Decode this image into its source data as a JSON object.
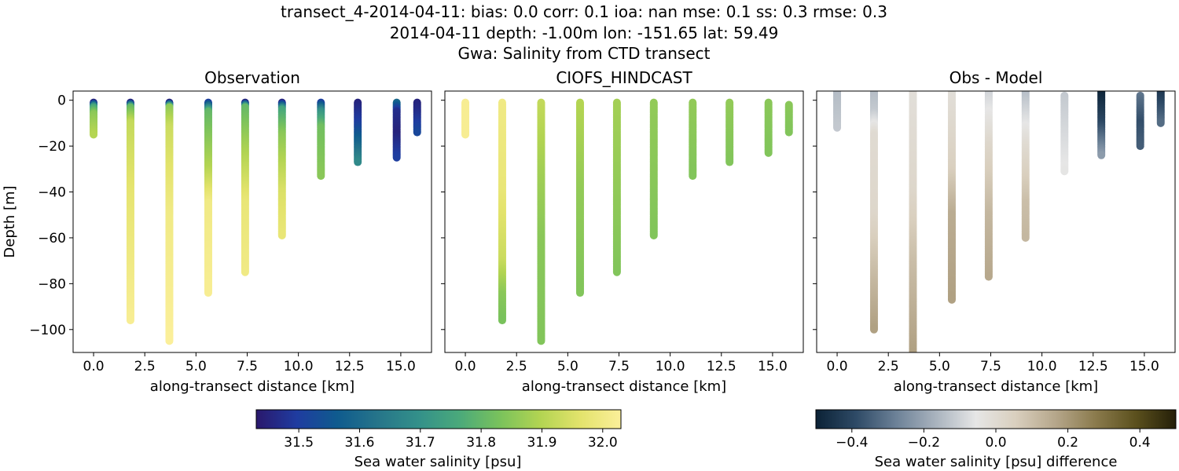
{
  "title_lines": [
    "transect_4-2014-04-11: bias: 0.0  corr: 0.1  ioa: nan  mse: 0.1  ss: 0.3  rmse: 0.3",
    "2014-04-11 depth: -1.00m lon: -151.65 lat: 59.49",
    "Gwa: Salinity from CTD transect"
  ],
  "colorbars": [
    {
      "id": "salinity",
      "label": "Sea water salinity [psu]",
      "range": [
        31.43,
        32.03
      ],
      "ticks": [
        "31.5",
        "31.6",
        "31.7",
        "31.8",
        "31.9",
        "32.0"
      ],
      "tick_values": [
        31.5,
        31.6,
        31.7,
        31.8,
        31.9,
        32.0
      ],
      "colormap": "haline",
      "stops": [
        "#2a186c",
        "#1f3ca0",
        "#0f5b8e",
        "#26758a",
        "#33908a",
        "#4aa97b",
        "#79c25c",
        "#b2d452",
        "#e3e36c",
        "#fbef9a"
      ]
    },
    {
      "id": "difference",
      "label": "Sea water salinity [psu] difference",
      "range": [
        -0.5,
        0.5
      ],
      "ticks": [
        "−0.4",
        "−0.2",
        "0.0",
        "0.2",
        "0.4"
      ],
      "tick_values": [
        -0.4,
        -0.2,
        0.0,
        0.2,
        0.4
      ],
      "colormap": "diff",
      "stops": [
        "#0b2236",
        "#2e4a66",
        "#6c8197",
        "#a9b3be",
        "#e6e6e6",
        "#d9cfbe",
        "#b5a68a",
        "#8a7a4c",
        "#5b501d",
        "#241f08"
      ]
    }
  ],
  "chart_data": [
    {
      "type": "scatter",
      "title": "Observation",
      "xlabel": "along-transect distance [km]",
      "ylabel": "Depth [m]",
      "xlim": [
        -1.0,
        16.5
      ],
      "ylim": [
        -110,
        4
      ],
      "xticks": [
        "0.0",
        "2.5",
        "5.0",
        "7.5",
        "10.0",
        "12.5",
        "15.0"
      ],
      "xtick_values": [
        0,
        2.5,
        5,
        7.5,
        10,
        12.5,
        15
      ],
      "yticks": [
        "0",
        "−20",
        "−40",
        "−60",
        "−80",
        "−100"
      ],
      "ytick_values": [
        0,
        -20,
        -40,
        -60,
        -80,
        -100
      ],
      "colorbar": "salinity",
      "casts": [
        {
          "x": 0.0,
          "top": -1,
          "bottom": -15,
          "profile": [
            [
              -1,
              31.45
            ],
            [
              -3,
              31.75
            ],
            [
              -6,
              31.85
            ],
            [
              -15,
              31.9
            ]
          ]
        },
        {
          "x": 1.8,
          "top": -1,
          "bottom": -96,
          "profile": [
            [
              -1,
              31.45
            ],
            [
              -3,
              31.8
            ],
            [
              -10,
              31.92
            ],
            [
              -40,
              31.97
            ],
            [
              -96,
              32.02
            ]
          ]
        },
        {
          "x": 3.7,
          "top": -1,
          "bottom": -105,
          "profile": [
            [
              -1,
              31.45
            ],
            [
              -3,
              31.85
            ],
            [
              -12,
              31.93
            ],
            [
              -50,
              32.0
            ],
            [
              -105,
              32.03
            ]
          ]
        },
        {
          "x": 5.6,
          "top": -1,
          "bottom": -84,
          "profile": [
            [
              -1,
              31.5
            ],
            [
              -5,
              31.8
            ],
            [
              -30,
              31.9
            ],
            [
              -45,
              32.0
            ],
            [
              -84,
              32.02
            ]
          ]
        },
        {
          "x": 7.4,
          "top": -1,
          "bottom": -75,
          "profile": [
            [
              -1,
              31.45
            ],
            [
              -3,
              31.8
            ],
            [
              -20,
              31.88
            ],
            [
              -45,
              31.98
            ],
            [
              -75,
              32.0
            ]
          ]
        },
        {
          "x": 9.2,
          "top": -1,
          "bottom": -59,
          "profile": [
            [
              -1,
              31.45
            ],
            [
              -4,
              31.75
            ],
            [
              -15,
              31.85
            ],
            [
              -40,
              31.95
            ],
            [
              -59,
              31.98
            ]
          ]
        },
        {
          "x": 11.1,
          "top": -1,
          "bottom": -33,
          "profile": [
            [
              -1,
              31.5
            ],
            [
              -5,
              31.7
            ],
            [
              -12,
              31.82
            ],
            [
              -33,
              31.85
            ]
          ]
        },
        {
          "x": 12.9,
          "top": -1,
          "bottom": -27,
          "profile": [
            [
              -1,
              31.45
            ],
            [
              -10,
              31.5
            ],
            [
              -20,
              31.6
            ],
            [
              -27,
              31.68
            ]
          ]
        },
        {
          "x": 14.8,
          "top": -1,
          "bottom": -25,
          "profile": [
            [
              -1,
              31.6
            ],
            [
              -5,
              31.47
            ],
            [
              -15,
              31.45
            ],
            [
              -25,
              31.5
            ]
          ]
        },
        {
          "x": 15.8,
          "top": -1,
          "bottom": -14,
          "profile": [
            [
              -1,
              31.45
            ],
            [
              -6,
              31.47
            ],
            [
              -14,
              31.52
            ]
          ]
        }
      ]
    },
    {
      "type": "scatter",
      "title": "CIOFS_HINDCAST",
      "xlabel": "along-transect distance [km]",
      "ylabel": "",
      "xlim": [
        -1.0,
        16.5
      ],
      "ylim": [
        -110,
        4
      ],
      "xticks": [
        "0.0",
        "2.5",
        "5.0",
        "7.5",
        "10.0",
        "12.5",
        "15.0"
      ],
      "xtick_values": [
        0,
        2.5,
        5,
        7.5,
        10,
        12.5,
        15
      ],
      "colorbar": "salinity",
      "casts": [
        {
          "x": 0.0,
          "top": -1,
          "bottom": -15,
          "profile": [
            [
              -1,
              32.02
            ],
            [
              -15,
              32.02
            ]
          ]
        },
        {
          "x": 1.8,
          "top": -1,
          "bottom": -96,
          "profile": [
            [
              -1,
              32.0
            ],
            [
              -40,
              31.98
            ],
            [
              -70,
              31.93
            ],
            [
              -85,
              31.85
            ],
            [
              -96,
              31.83
            ]
          ]
        },
        {
          "x": 3.7,
          "top": -1,
          "bottom": -105,
          "profile": [
            [
              -1,
              31.92
            ],
            [
              -30,
              31.88
            ],
            [
              -60,
              31.85
            ],
            [
              -105,
              31.84
            ]
          ]
        },
        {
          "x": 5.6,
          "top": -1,
          "bottom": -84,
          "profile": [
            [
              -1,
              31.9
            ],
            [
              -40,
              31.86
            ],
            [
              -84,
              31.84
            ]
          ]
        },
        {
          "x": 7.4,
          "top": -1,
          "bottom": -75,
          "profile": [
            [
              -1,
              31.88
            ],
            [
              -75,
              31.84
            ]
          ]
        },
        {
          "x": 9.2,
          "top": -1,
          "bottom": -59,
          "profile": [
            [
              -1,
              31.86
            ],
            [
              -59,
              31.84
            ]
          ]
        },
        {
          "x": 11.1,
          "top": -1,
          "bottom": -33,
          "profile": [
            [
              -1,
              31.86
            ],
            [
              -33,
              31.84
            ]
          ]
        },
        {
          "x": 12.9,
          "top": -1,
          "bottom": -27,
          "profile": [
            [
              -1,
              31.86
            ],
            [
              -27,
              31.84
            ]
          ]
        },
        {
          "x": 14.8,
          "top": -1,
          "bottom": -23,
          "profile": [
            [
              -1,
              31.85
            ],
            [
              -23,
              31.84
            ]
          ]
        },
        {
          "x": 15.8,
          "top": -2,
          "bottom": -14,
          "profile": [
            [
              -2,
              31.85
            ],
            [
              -14,
              31.84
            ]
          ]
        }
      ]
    },
    {
      "type": "scatter",
      "title": "Obs - Model",
      "xlabel": "along-transect distance [km]",
      "ylabel": "",
      "xlim": [
        -1.0,
        16.5
      ],
      "ylim": [
        -110,
        4
      ],
      "xticks": [
        "0.0",
        "2.5",
        "5.0",
        "7.5",
        "10.0",
        "12.5",
        "15.0"
      ],
      "xtick_values": [
        0,
        2.5,
        5,
        7.5,
        10,
        12.5,
        15
      ],
      "colorbar": "difference",
      "casts": [
        {
          "x": 0.0,
          "top": 4,
          "bottom": -12,
          "profile": [
            [
              4,
              -0.15
            ],
            [
              -12,
              -0.12
            ]
          ]
        },
        {
          "x": 1.8,
          "top": 4,
          "bottom": -100,
          "profile": [
            [
              4,
              -0.15
            ],
            [
              -5,
              -0.12
            ],
            [
              -15,
              0.0
            ],
            [
              -50,
              0.02
            ],
            [
              -80,
              0.12
            ],
            [
              -100,
              0.18
            ]
          ]
        },
        {
          "x": 3.7,
          "top": 4,
          "bottom": -110,
          "profile": [
            [
              4,
              -0.02
            ],
            [
              -40,
              0.02
            ],
            [
              -70,
              0.1
            ],
            [
              -110,
              0.18
            ]
          ]
        },
        {
          "x": 5.6,
          "top": 4,
          "bottom": -87,
          "profile": [
            [
              4,
              -0.02
            ],
            [
              -30,
              0.05
            ],
            [
              -50,
              0.15
            ],
            [
              -87,
              0.18
            ]
          ]
        },
        {
          "x": 7.4,
          "top": 4,
          "bottom": -77,
          "profile": [
            [
              4,
              -0.1
            ],
            [
              -20,
              0.02
            ],
            [
              -50,
              0.12
            ],
            [
              -77,
              0.16
            ]
          ]
        },
        {
          "x": 9.2,
          "top": 4,
          "bottom": -60,
          "profile": [
            [
              4,
              -0.15
            ],
            [
              -20,
              0.0
            ],
            [
              -45,
              0.1
            ],
            [
              -60,
              0.12
            ]
          ]
        },
        {
          "x": 11.1,
          "top": 2,
          "bottom": -31,
          "profile": [
            [
              2,
              -0.12
            ],
            [
              -31,
              -0.05
            ]
          ]
        },
        {
          "x": 12.9,
          "top": 4,
          "bottom": -24,
          "profile": [
            [
              4,
              -0.5
            ],
            [
              -10,
              -0.4
            ],
            [
              -24,
              -0.22
            ]
          ]
        },
        {
          "x": 14.8,
          "top": 2,
          "bottom": -20,
          "profile": [
            [
              2,
              -0.3
            ],
            [
              -10,
              -0.38
            ],
            [
              -20,
              -0.35
            ]
          ]
        },
        {
          "x": 15.8,
          "top": 4,
          "bottom": -10,
          "profile": [
            [
              4,
              -0.45
            ],
            [
              -10,
              -0.32
            ]
          ]
        }
      ]
    }
  ]
}
